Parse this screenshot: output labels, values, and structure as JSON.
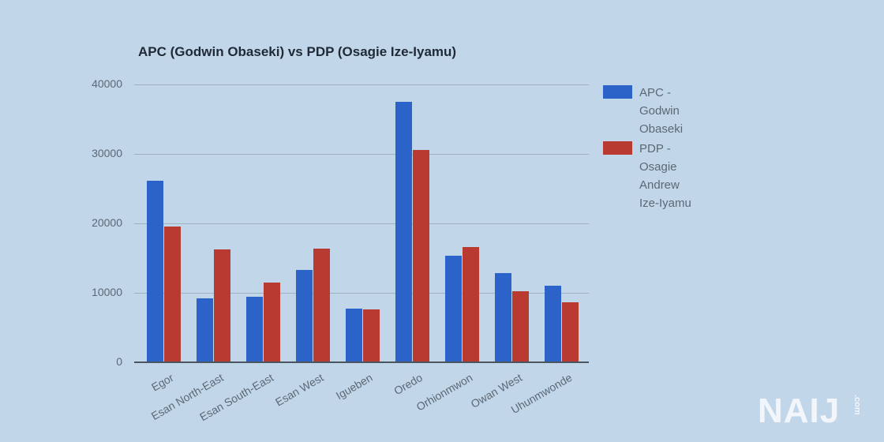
{
  "chart_data": {
    "type": "bar",
    "title": "APC (Godwin Obaseki) vs PDP (Osagie Ize-Iyamu)",
    "xlabel": "",
    "ylabel": "",
    "ylim": [
      0,
      40000
    ],
    "yticks": [
      0,
      10000,
      20000,
      30000,
      40000
    ],
    "grid": true,
    "legend_position": "right",
    "categories": [
      "Egor",
      "Esan North-East",
      "Esan South-East",
      "Esan West",
      "Igueben",
      "Oredo",
      "Orhionmwon",
      "Owan West",
      "Uhunmwonde"
    ],
    "series": [
      {
        "name": "APC - Godwin Obaseki",
        "color": "#2b63c8",
        "values": [
          26000,
          9100,
          9300,
          13200,
          7600,
          37400,
          15200,
          12700,
          10900
        ]
      },
      {
        "name": "PDP - Osagie Andrew Ize-Iyamu",
        "color": "#b83a30",
        "values": [
          19400,
          16100,
          11400,
          16250,
          7500,
          30450,
          16450,
          10100,
          8500
        ]
      }
    ]
  },
  "legend": {
    "apc_lines": [
      "APC -",
      "Godwin",
      "Obaseki"
    ],
    "pdp_lines": [
      "PDP -",
      "Osagie",
      "Andrew",
      "Ize-Iyamu"
    ]
  },
  "yaxis": {
    "labels": [
      "40000",
      "30000",
      "20000",
      "10000",
      "0"
    ]
  },
  "watermark": {
    "brand": "NAIJ",
    "suffix": ".com"
  }
}
